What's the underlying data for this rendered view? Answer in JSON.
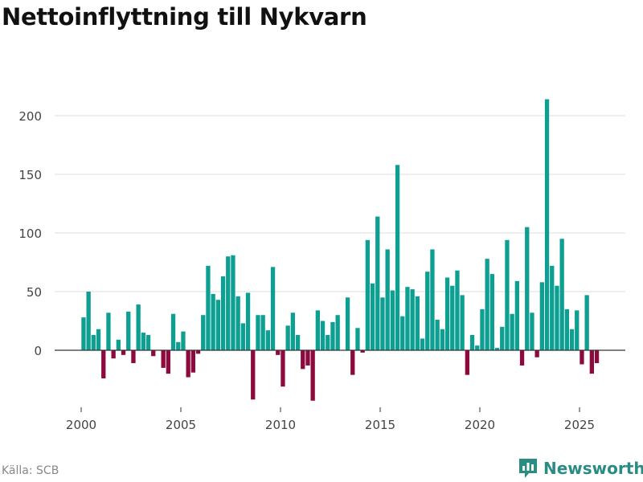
{
  "brand": {
    "name": "Newsworthy",
    "icon": "bar-chart-logo-icon",
    "color": "#2a8c82"
  },
  "source": "Källa: SCB",
  "chart_data": {
    "type": "bar",
    "title": "Nettoinflyttning till Nykvarn",
    "xlabel": "",
    "ylabel": "",
    "ylim": [
      -45,
      220
    ],
    "yticks": [
      0,
      50,
      100,
      150,
      200
    ],
    "xticks": [
      2000,
      2005,
      2010,
      2015,
      2020,
      2025
    ],
    "xlim": [
      1999.2,
      2027.2
    ],
    "grid": true,
    "positive_color": "#0d9f91",
    "negative_color": "#8c0a3d",
    "x_start": 2000.0,
    "x_step": 0.25,
    "values": [
      28,
      50,
      13,
      18,
      -24,
      32,
      -7,
      9,
      -4,
      33,
      -11,
      39,
      15,
      13,
      -5,
      0,
      -15,
      -20,
      31,
      7,
      16,
      -23,
      -19,
      -3,
      30,
      72,
      48,
      43,
      63,
      80,
      81,
      46,
      23,
      49,
      -42,
      30,
      30,
      17,
      71,
      -4,
      -31,
      21,
      32,
      13,
      -16,
      -13,
      -43,
      34,
      25,
      13,
      24,
      30,
      0,
      45,
      -21,
      19,
      -2,
      94,
      57,
      114,
      45,
      86,
      51,
      158,
      29,
      54,
      52,
      46,
      10,
      67,
      86,
      26,
      18,
      62,
      55,
      68,
      47,
      -21,
      13,
      4,
      35,
      78,
      65,
      2,
      20,
      94,
      31,
      59,
      -13,
      105,
      32,
      -6,
      58,
      214,
      72,
      55,
      95,
      35,
      18,
      34,
      -12,
      47,
      -20,
      -11
    ]
  }
}
